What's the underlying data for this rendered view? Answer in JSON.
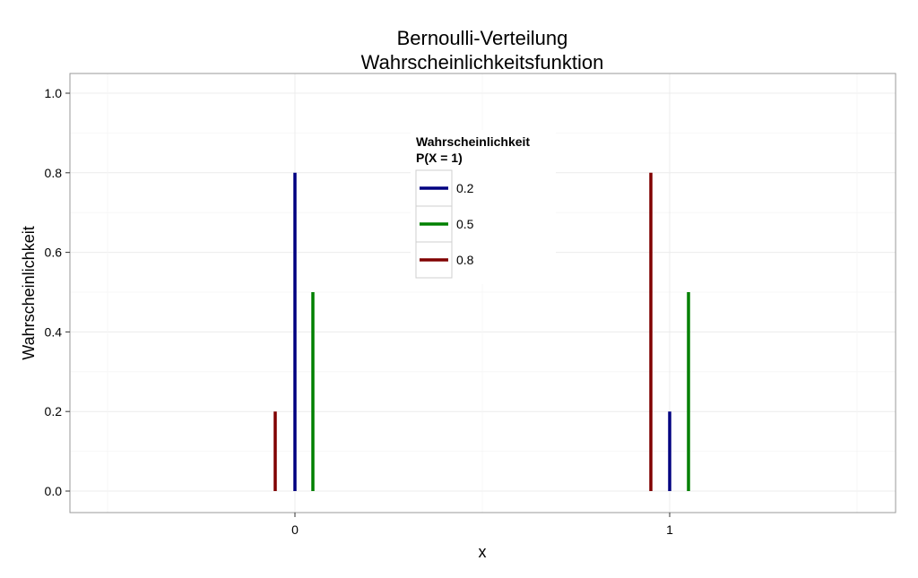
{
  "chart_data": {
    "type": "bar",
    "title": "Bernoulli-Verteilung",
    "subtitle": "Wahrscheinlichkeitsfunktion",
    "xlabel": "x",
    "ylabel": "Wahrscheinlichkeit",
    "categories": [
      "0",
      "1"
    ],
    "ylim": [
      0,
      1
    ],
    "yticks": [
      "0.0",
      "0.2",
      "0.4",
      "0.6",
      "0.8",
      "1.0"
    ],
    "legend": {
      "title_line1": "Wahrscheinlichkeit",
      "title_line2": "P(X = 1)",
      "position": "center-top"
    },
    "grid": true,
    "series": [
      {
        "name": "0.2",
        "color": "#000080",
        "values": [
          0.8,
          0.2
        ]
      },
      {
        "name": "0.5",
        "color": "#008000",
        "values": [
          0.5,
          0.5
        ]
      },
      {
        "name": "0.8",
        "color": "#800000",
        "values": [
          0.2,
          0.8
        ]
      }
    ]
  }
}
